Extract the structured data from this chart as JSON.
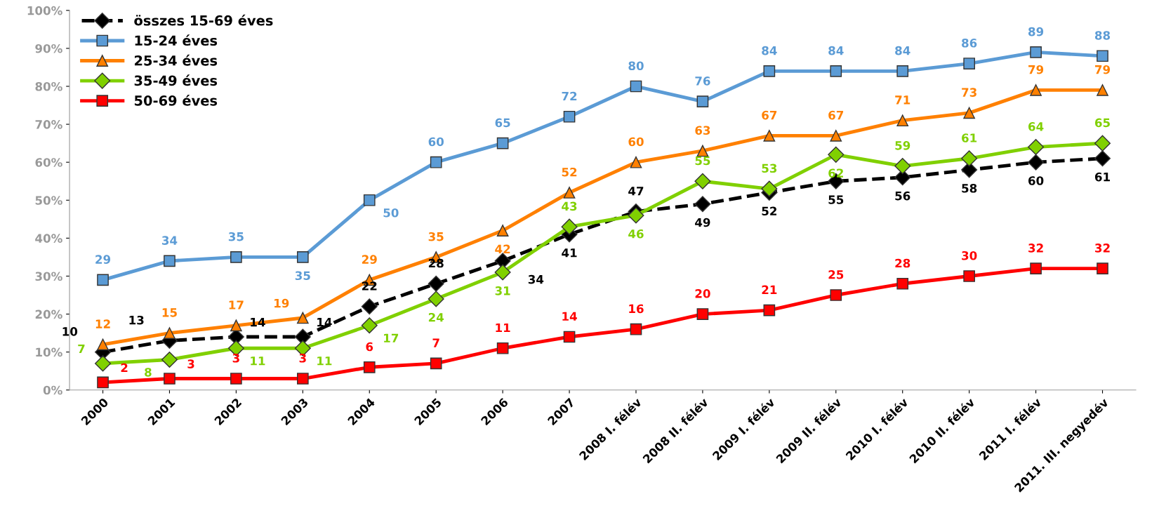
{
  "chart_data": {
    "type": "line",
    "categories": [
      "2000",
      "2001",
      "2002",
      "2003",
      "2004",
      "2005",
      "2006",
      "2007",
      "2008 I. félév",
      "2008 II. félév",
      "2009 I. félév",
      "2009 II. félév",
      "2010 I. félév",
      "2010 II. félév",
      "2011 I. félév",
      "2011. III. negyedév"
    ],
    "series": [
      {
        "name": "összes 15-69 éves",
        "color": "#000000",
        "marker": "diamond",
        "line_style": "dashed",
        "values": [
          10,
          13,
          14,
          14,
          22,
          28,
          34,
          41,
          47,
          49,
          52,
          55,
          56,
          58,
          60,
          61
        ]
      },
      {
        "name": "15-24 éves",
        "color": "#5b9bd5",
        "marker": "square",
        "line_style": "solid",
        "values": [
          29,
          34,
          35,
          35,
          50,
          60,
          65,
          72,
          80,
          76,
          84,
          84,
          84,
          86,
          89,
          88
        ]
      },
      {
        "name": "25-34 éves",
        "color": "#ff8000",
        "marker": "triangle",
        "line_style": "solid",
        "values": [
          12,
          15,
          17,
          19,
          29,
          35,
          42,
          52,
          60,
          63,
          67,
          67,
          71,
          73,
          79,
          79
        ]
      },
      {
        "name": "35-49 éves",
        "color": "#80d000",
        "marker": "diamond",
        "line_style": "solid",
        "values": [
          7,
          8,
          11,
          11,
          17,
          24,
          31,
          43,
          46,
          55,
          53,
          62,
          59,
          61,
          64,
          65
        ]
      },
      {
        "name": "50-69 éves",
        "color": "#ff0000",
        "marker": "square",
        "line_style": "solid",
        "values": [
          2,
          3,
          3,
          3,
          6,
          7,
          11,
          14,
          16,
          20,
          21,
          25,
          28,
          30,
          32,
          32
        ]
      }
    ],
    "ylim": [
      0,
      100
    ],
    "yticks": [
      {
        "value": 0,
        "label": "0%"
      },
      {
        "value": 10,
        "label": "10%"
      },
      {
        "value": 20,
        "label": "20%"
      },
      {
        "value": 30,
        "label": "30%"
      },
      {
        "value": 40,
        "label": "40%"
      },
      {
        "value": 50,
        "label": "50%"
      },
      {
        "value": 60,
        "label": "60%"
      },
      {
        "value": 70,
        "label": "70%"
      },
      {
        "value": 80,
        "label": "80%"
      },
      {
        "value": 90,
        "label": "90%"
      },
      {
        "value": 100,
        "label": "100%"
      }
    ],
    "data_labels": true,
    "legend": "top left",
    "grid": false
  }
}
